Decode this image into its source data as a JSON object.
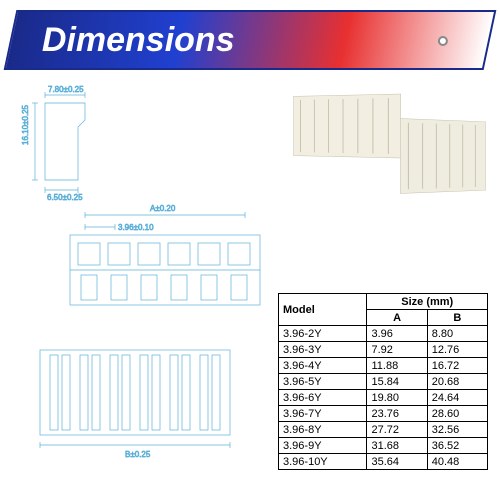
{
  "banner": {
    "title": "Dimensions"
  },
  "drawings": {
    "side_view": {
      "width_label": "7.80±0.25",
      "height_label": "16.10±0.25",
      "base_label": "6.50±0.25"
    },
    "front_view": {
      "overall_label": "A±0.20",
      "pitch_label": "3.96±0.10",
      "pin_count": 6
    },
    "bottom_view": {
      "width_label": "B±0.25",
      "slot_count": 6
    },
    "line_width": 0.7,
    "color": "#5bb0d8"
  },
  "photos": {
    "connector1": {
      "pins": 7
    },
    "connector2": {
      "pins": 6
    }
  },
  "table": {
    "header": {
      "model": "Model",
      "size": "Size (mm)",
      "a": "A",
      "b": "B"
    },
    "rows": [
      {
        "model": "3.96-2Y",
        "a": "3.96",
        "b": "8.80"
      },
      {
        "model": "3.96-3Y",
        "a": "7.92",
        "b": "12.76"
      },
      {
        "model": "3.96-4Y",
        "a": "11.88",
        "b": "16.72"
      },
      {
        "model": "3.96-5Y",
        "a": "15.84",
        "b": "20.68"
      },
      {
        "model": "3.96-6Y",
        "a": "19.80",
        "b": "24.64"
      },
      {
        "model": "3.96-7Y",
        "a": "23.76",
        "b": "28.60"
      },
      {
        "model": "3.96-8Y",
        "a": "27.72",
        "b": "32.56"
      },
      {
        "model": "3.96-9Y",
        "a": "31.68",
        "b": "36.52"
      },
      {
        "model": "3.96-10Y",
        "a": "35.64",
        "b": "40.48"
      }
    ]
  }
}
